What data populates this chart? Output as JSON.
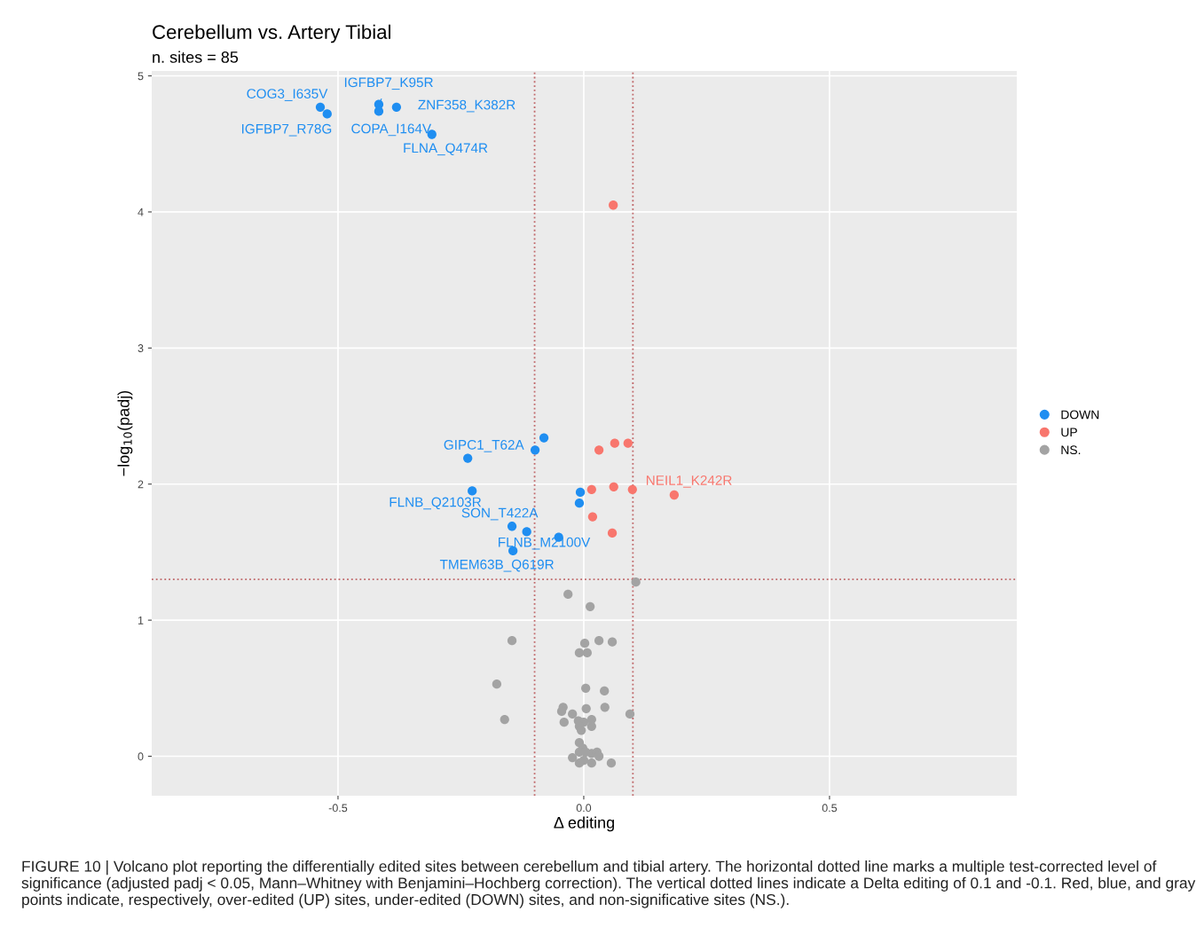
{
  "chart_data": {
    "type": "scatter",
    "title": "Cerebellum vs. Artery Tibial",
    "subtitle": "n. sites = 85",
    "xlabel": "Δ editing",
    "ylabel": "−log$_{10}$(padj)",
    "xlim": [
      -0.879,
      0.881
    ],
    "ylim": [
      -0.29,
      5.036
    ],
    "xticks": [
      -0.5,
      {
        "value": 0,
        "label": "0.0"
      },
      0.5
    ],
    "yticks": [
      0,
      1,
      2,
      3,
      4,
      5
    ],
    "grid": true,
    "legend": "right",
    "marker": "circle",
    "series": [
      {
        "name": "DOWN",
        "color": "#1f8ef1",
        "x": [
          -0.536,
          -0.522,
          -0.417,
          -0.417,
          -0.381,
          -0.309,
          -0.081,
          -0.099,
          -0.236,
          -0.227,
          -0.007,
          -0.009,
          -0.146,
          -0.116,
          -0.051,
          -0.144
        ],
        "values": [
          4.77,
          4.72,
          4.79,
          4.74,
          4.77,
          4.57,
          2.34,
          2.25,
          2.19,
          1.95,
          1.94,
          1.86,
          1.69,
          1.65,
          1.61,
          1.51
        ]
      },
      {
        "name": "UP",
        "color": "#f8766d",
        "x": [
          0.06,
          0.063,
          0.09,
          0.031,
          0.016,
          0.061,
          0.099,
          0.184,
          0.018,
          0.058
        ],
        "values": [
          4.05,
          2.3,
          2.3,
          2.25,
          1.96,
          1.98,
          1.96,
          1.92,
          1.76,
          1.64
        ]
      },
      {
        "name": "NS.",
        "color": "#a3a3a3",
        "x": [
          0.106,
          -0.032,
          0.013,
          -0.146,
          0.002,
          0.031,
          0.058,
          -0.009,
          0.007,
          -0.177,
          0.004,
          0.042,
          -0.042,
          -0.045,
          0.005,
          0.043,
          -0.023,
          0.094,
          -0.161,
          -0.04,
          -0.011,
          0.0,
          0.016,
          -0.009,
          -0.005,
          0.016,
          -0.009,
          -0.002,
          -0.009,
          0.004,
          0.016,
          0.027,
          0.031,
          -0.023,
          0.0,
          0.016,
          0.056,
          -0.009
        ],
        "values": [
          1.28,
          1.19,
          1.1,
          0.85,
          0.83,
          0.85,
          0.84,
          0.76,
          0.76,
          0.53,
          0.5,
          0.48,
          0.36,
          0.33,
          0.35,
          0.36,
          0.31,
          0.31,
          0.27,
          0.25,
          0.26,
          0.25,
          0.27,
          0.22,
          0.19,
          0.22,
          0.1,
          0.06,
          0.03,
          0.03,
          0.02,
          0.03,
          0.0,
          -0.01,
          -0.03,
          -0.05,
          -0.05,
          -0.05
        ]
      }
    ],
    "ref_lines": [
      {
        "axis": "y",
        "value": 1.3,
        "color": "#c0686a",
        "line_style": "dotted"
      },
      {
        "axis": "x",
        "value": -0.1,
        "color": "#c0686a",
        "line_style": "dotted"
      },
      {
        "axis": "x",
        "value": 0.1,
        "color": "#c0686a",
        "line_style": "dotted"
      }
    ],
    "annotations": [
      {
        "text": "COG3_I635V",
        "x": -0.536,
        "y": 4.77
      },
      {
        "text": "IGFBP7_R78G",
        "x": -0.522,
        "y": 4.72
      },
      {
        "text": "IGFBP7_K95R",
        "x": -0.417,
        "y": 4.79
      },
      {
        "text": "COPA_I164V",
        "x": -0.417,
        "y": 4.74
      },
      {
        "text": "ZNF358_K382R",
        "x": -0.381,
        "y": 4.77
      },
      {
        "text": "FLNA_Q474R",
        "x": -0.309,
        "y": 4.57
      },
      {
        "text": "GIPC1_T62A",
        "x": -0.236,
        "y": 2.19
      },
      {
        "text": "FLNB_Q2103R",
        "x": -0.227,
        "y": 1.95
      },
      {
        "text": "SON_T422A",
        "x": -0.146,
        "y": 1.69
      },
      {
        "text": "FLNB_M2100V",
        "x": -0.051,
        "y": 1.61
      },
      {
        "text": "TMEM63B_Q619R",
        "x": -0.144,
        "y": 1.51
      },
      {
        "text": "NEIL1_K242R",
        "x": 0.184,
        "y": 1.92
      },
      "FIGURE 10 | Volcano plot reporting the differentially edited sites between cerebellum and tibial artery. The horizontal dotted line marks a multiple test-corrected level of significance (adjusted padj < 0.05, Mann–Whitney with Benjamini–Hochberg correction). The vertical dotted lines indicate a Delta editing of 0.1 and -0.1. Red, blue, and gray points indicate, respectively, over-edited (UP) sites, under-edited (DOWN) sites, and non-significative sites (NS.)."
    ]
  }
}
